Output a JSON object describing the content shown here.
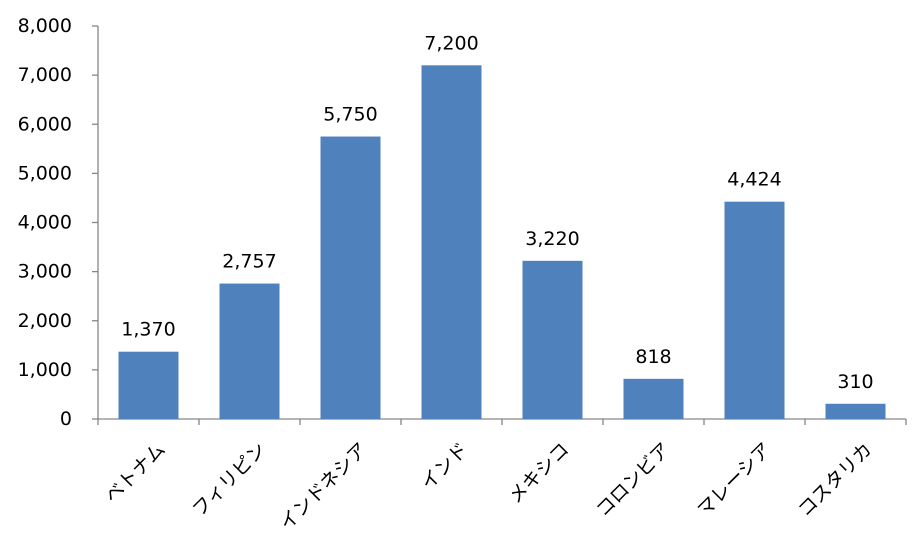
{
  "chart_data": {
    "type": "bar",
    "categories": [
      "ベトナム",
      "フィリピン",
      "インドネシア",
      "インド",
      "メキシコ",
      "コロンビア",
      "マレーシア",
      "コスタリカ"
    ],
    "values": [
      1370,
      2757,
      5750,
      7200,
      3220,
      818,
      4424,
      310
    ],
    "data_labels": [
      "1,370",
      "2,757",
      "5,750",
      "7,200",
      "3,220",
      "818",
      "4,424",
      "310"
    ],
    "y_ticks": [
      {
        "value": 0,
        "label": "0"
      },
      {
        "value": 1000,
        "label": "1,000"
      },
      {
        "value": 2000,
        "label": "2,000"
      },
      {
        "value": 3000,
        "label": "3,000"
      },
      {
        "value": 4000,
        "label": "4,000"
      },
      {
        "value": 5000,
        "label": "5,000"
      },
      {
        "value": 6000,
        "label": "6,000"
      },
      {
        "value": 7000,
        "label": "7,000"
      },
      {
        "value": 8000,
        "label": "8,000"
      }
    ],
    "ylim": [
      0,
      8000
    ],
    "title": "",
    "xlabel": "",
    "ylabel": "",
    "grid": false,
    "legend": "none",
    "bar_color": "#4F81BD",
    "axis_color": "#868686"
  }
}
